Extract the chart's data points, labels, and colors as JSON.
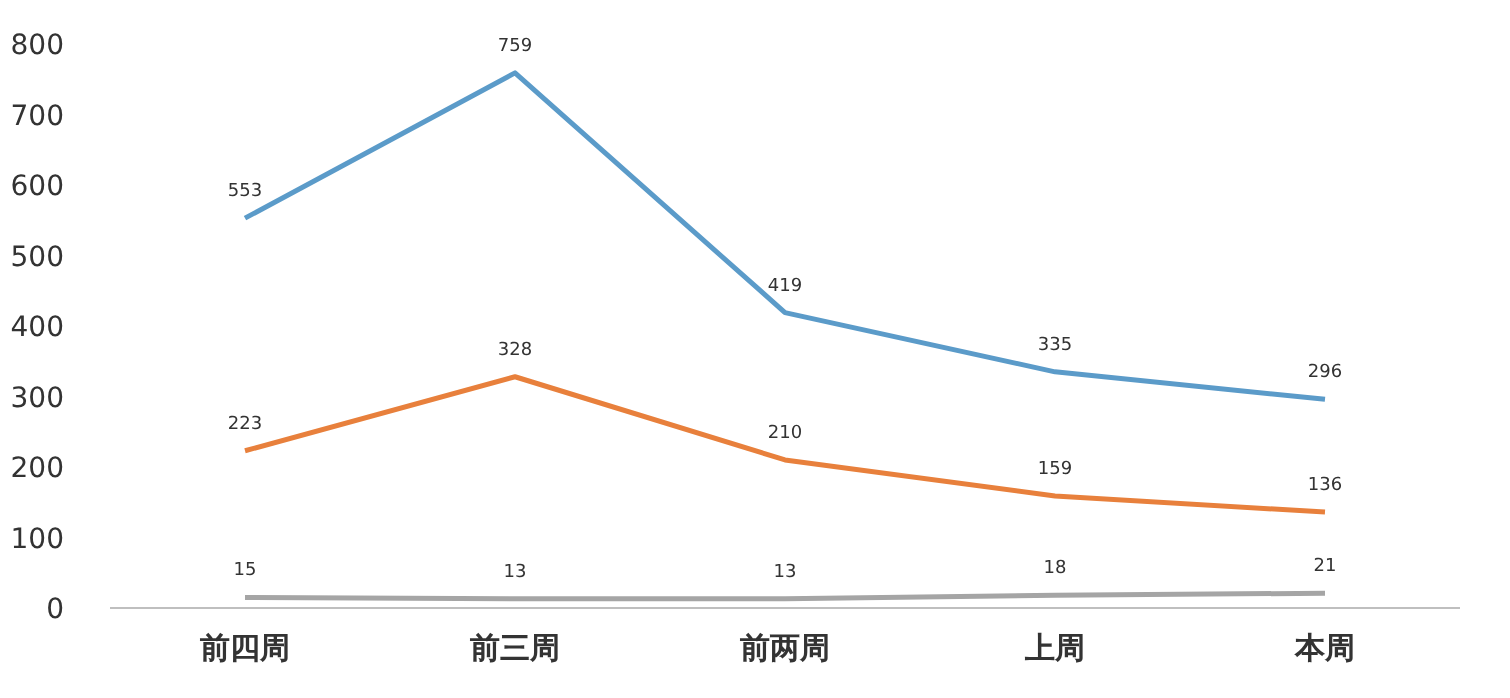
{
  "chart_data": {
    "type": "line",
    "categories": [
      "前四周",
      "前三周",
      "前两周",
      "上周",
      "本周"
    ],
    "series": [
      {
        "color": "#5b9bc9",
        "values": [
          553,
          759,
          419,
          335,
          296
        ]
      },
      {
        "color": "#e8803c",
        "values": [
          223,
          328,
          210,
          159,
          136
        ]
      },
      {
        "color": "#a5a5a5",
        "values": [
          15,
          13,
          13,
          18,
          21
        ]
      }
    ],
    "ylim": [
      0,
      800
    ],
    "yticks": [
      0,
      100,
      200,
      300,
      400,
      500,
      600,
      700,
      800
    ],
    "grid": false,
    "data_labels": true,
    "marker": "none"
  }
}
